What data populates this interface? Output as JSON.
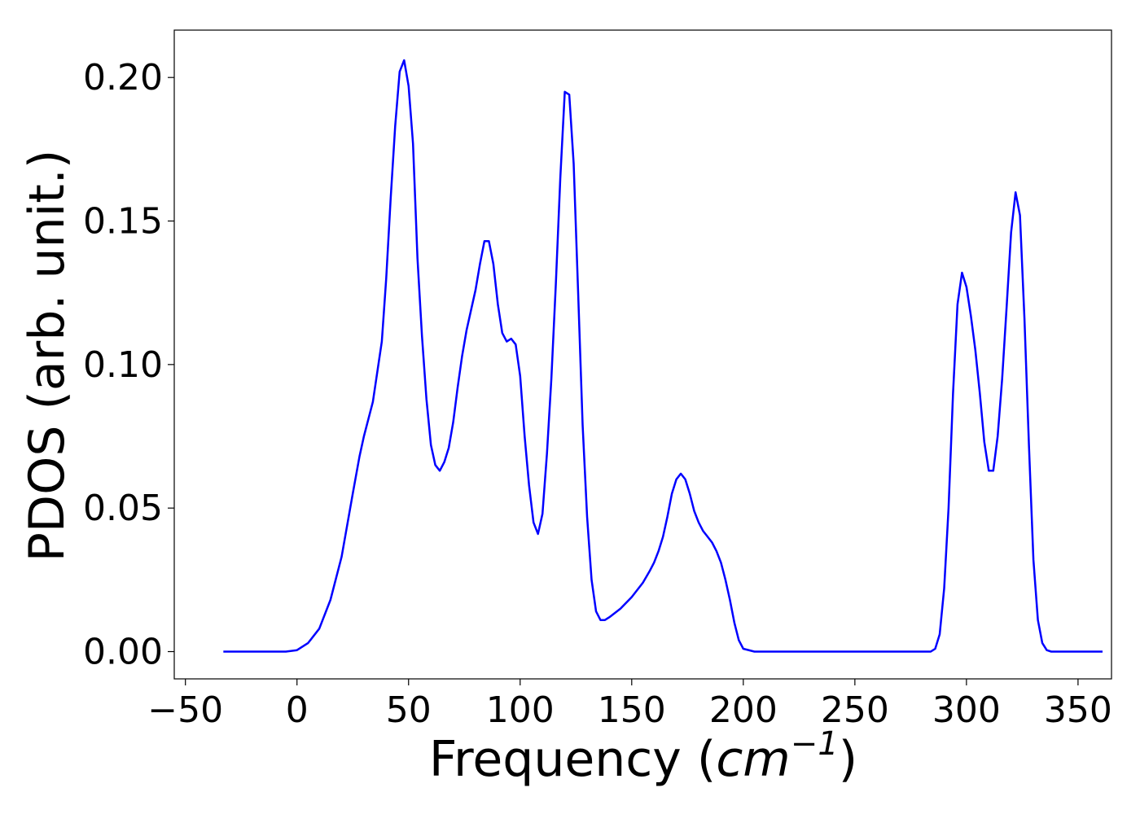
{
  "chart_data": {
    "type": "line",
    "title": "",
    "xlabel": "Frequency",
    "xlabel_parts": {
      "open": "(",
      "base": "cm",
      "exponent": "−1",
      "close": ")"
    },
    "ylabel": "PDOS (arb. unit.)",
    "xlim": [
      -55,
      365
    ],
    "ylim": [
      -0.0095,
      0.2165
    ],
    "xticks": [
      -50,
      0,
      50,
      100,
      150,
      200,
      250,
      300,
      350
    ],
    "xtick_labels": [
      "−50",
      "0",
      "50",
      "100",
      "150",
      "200",
      "250",
      "300",
      "350"
    ],
    "yticks": [
      0.0,
      0.05,
      0.1,
      0.15,
      0.2
    ],
    "ytick_labels": [
      "0.00",
      "0.05",
      "0.10",
      "0.15",
      "0.20"
    ],
    "grid": false,
    "legend": "none",
    "series": [
      {
        "color": "#0000ff",
        "x": [
          -33,
          -20,
          -10,
          -5,
          0,
          5,
          10,
          15,
          20,
          25,
          28,
          30,
          34,
          38,
          40,
          42,
          44,
          46,
          48,
          50,
          52,
          54,
          56,
          58,
          60,
          62,
          64,
          66,
          68,
          70,
          72,
          74,
          76,
          78,
          80,
          82,
          84,
          86,
          88,
          90,
          92,
          94,
          96,
          98,
          100,
          102,
          104,
          106,
          108,
          110,
          112,
          114,
          116,
          118,
          120,
          122,
          124,
          126,
          128,
          130,
          132,
          134,
          136,
          138,
          140,
          145,
          150,
          155,
          158,
          160,
          162,
          164,
          166,
          168,
          170,
          172,
          174,
          176,
          178,
          180,
          182,
          184,
          186,
          188,
          190,
          192,
          194,
          196,
          198,
          200,
          205,
          210,
          220,
          240,
          260,
          280,
          284,
          286,
          288,
          290,
          292,
          294,
          296,
          298,
          300,
          302,
          304,
          306,
          308,
          310,
          312,
          314,
          316,
          318,
          320,
          322,
          324,
          326,
          328,
          330,
          332,
          334,
          336,
          338,
          340,
          345,
          350,
          361
        ],
        "y": [
          0.0,
          0.0,
          0.0,
          0.0,
          0.0005,
          0.003,
          0.008,
          0.018,
          0.033,
          0.055,
          0.068,
          0.075,
          0.087,
          0.108,
          0.13,
          0.158,
          0.183,
          0.202,
          0.206,
          0.197,
          0.177,
          0.137,
          0.11,
          0.088,
          0.072,
          0.065,
          0.063,
          0.066,
          0.071,
          0.08,
          0.092,
          0.103,
          0.112,
          0.119,
          0.126,
          0.135,
          0.143,
          0.143,
          0.135,
          0.121,
          0.111,
          0.108,
          0.109,
          0.107,
          0.096,
          0.075,
          0.058,
          0.045,
          0.041,
          0.048,
          0.069,
          0.095,
          0.128,
          0.165,
          0.195,
          0.194,
          0.17,
          0.125,
          0.079,
          0.047,
          0.025,
          0.014,
          0.011,
          0.011,
          0.012,
          0.015,
          0.019,
          0.024,
          0.028,
          0.031,
          0.035,
          0.04,
          0.047,
          0.055,
          0.06,
          0.062,
          0.06,
          0.055,
          0.049,
          0.045,
          0.042,
          0.04,
          0.038,
          0.035,
          0.031,
          0.025,
          0.018,
          0.01,
          0.004,
          0.001,
          0.0,
          0.0,
          0.0,
          0.0,
          0.0,
          0.0,
          0.0,
          0.001,
          0.006,
          0.022,
          0.05,
          0.09,
          0.121,
          0.132,
          0.127,
          0.117,
          0.105,
          0.09,
          0.073,
          0.063,
          0.063,
          0.075,
          0.095,
          0.12,
          0.146,
          0.16,
          0.152,
          0.116,
          0.072,
          0.032,
          0.011,
          0.003,
          0.0005,
          0.0,
          0.0,
          0.0,
          0.0,
          0.0
        ]
      }
    ]
  }
}
